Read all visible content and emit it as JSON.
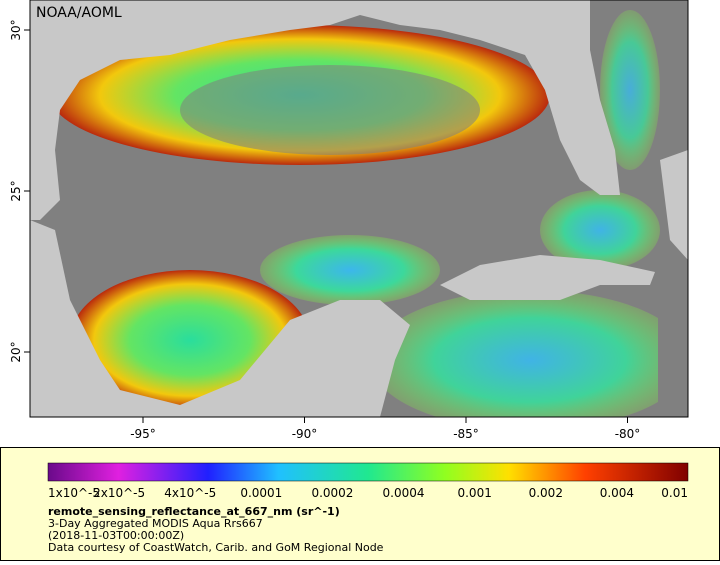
{
  "map": {
    "credit": "NOAA/AOML",
    "lon_ticks": [
      "-95°",
      "-90°",
      "-85°",
      "-80°"
    ],
    "lat_ticks": [
      "30°",
      "25°",
      "20°"
    ],
    "colorbar": {
      "labels": [
        "1x10^-5",
        "2x10^-5",
        "4x10^-5",
        "0.0001",
        "0.0002",
        "0.0004",
        "0.001",
        "0.002",
        "0.004",
        "0.01"
      ]
    },
    "variable": "remote_sensing_reflectance_at_667_nm (sr^-1)",
    "description": "3-Day Aggregated MODIS Aqua Rrs667",
    "time": "(2018-11-03T00:00:00Z)",
    "source": "Data courtesy of CoastWatch, Carib. and GoM Regional Node"
  }
}
